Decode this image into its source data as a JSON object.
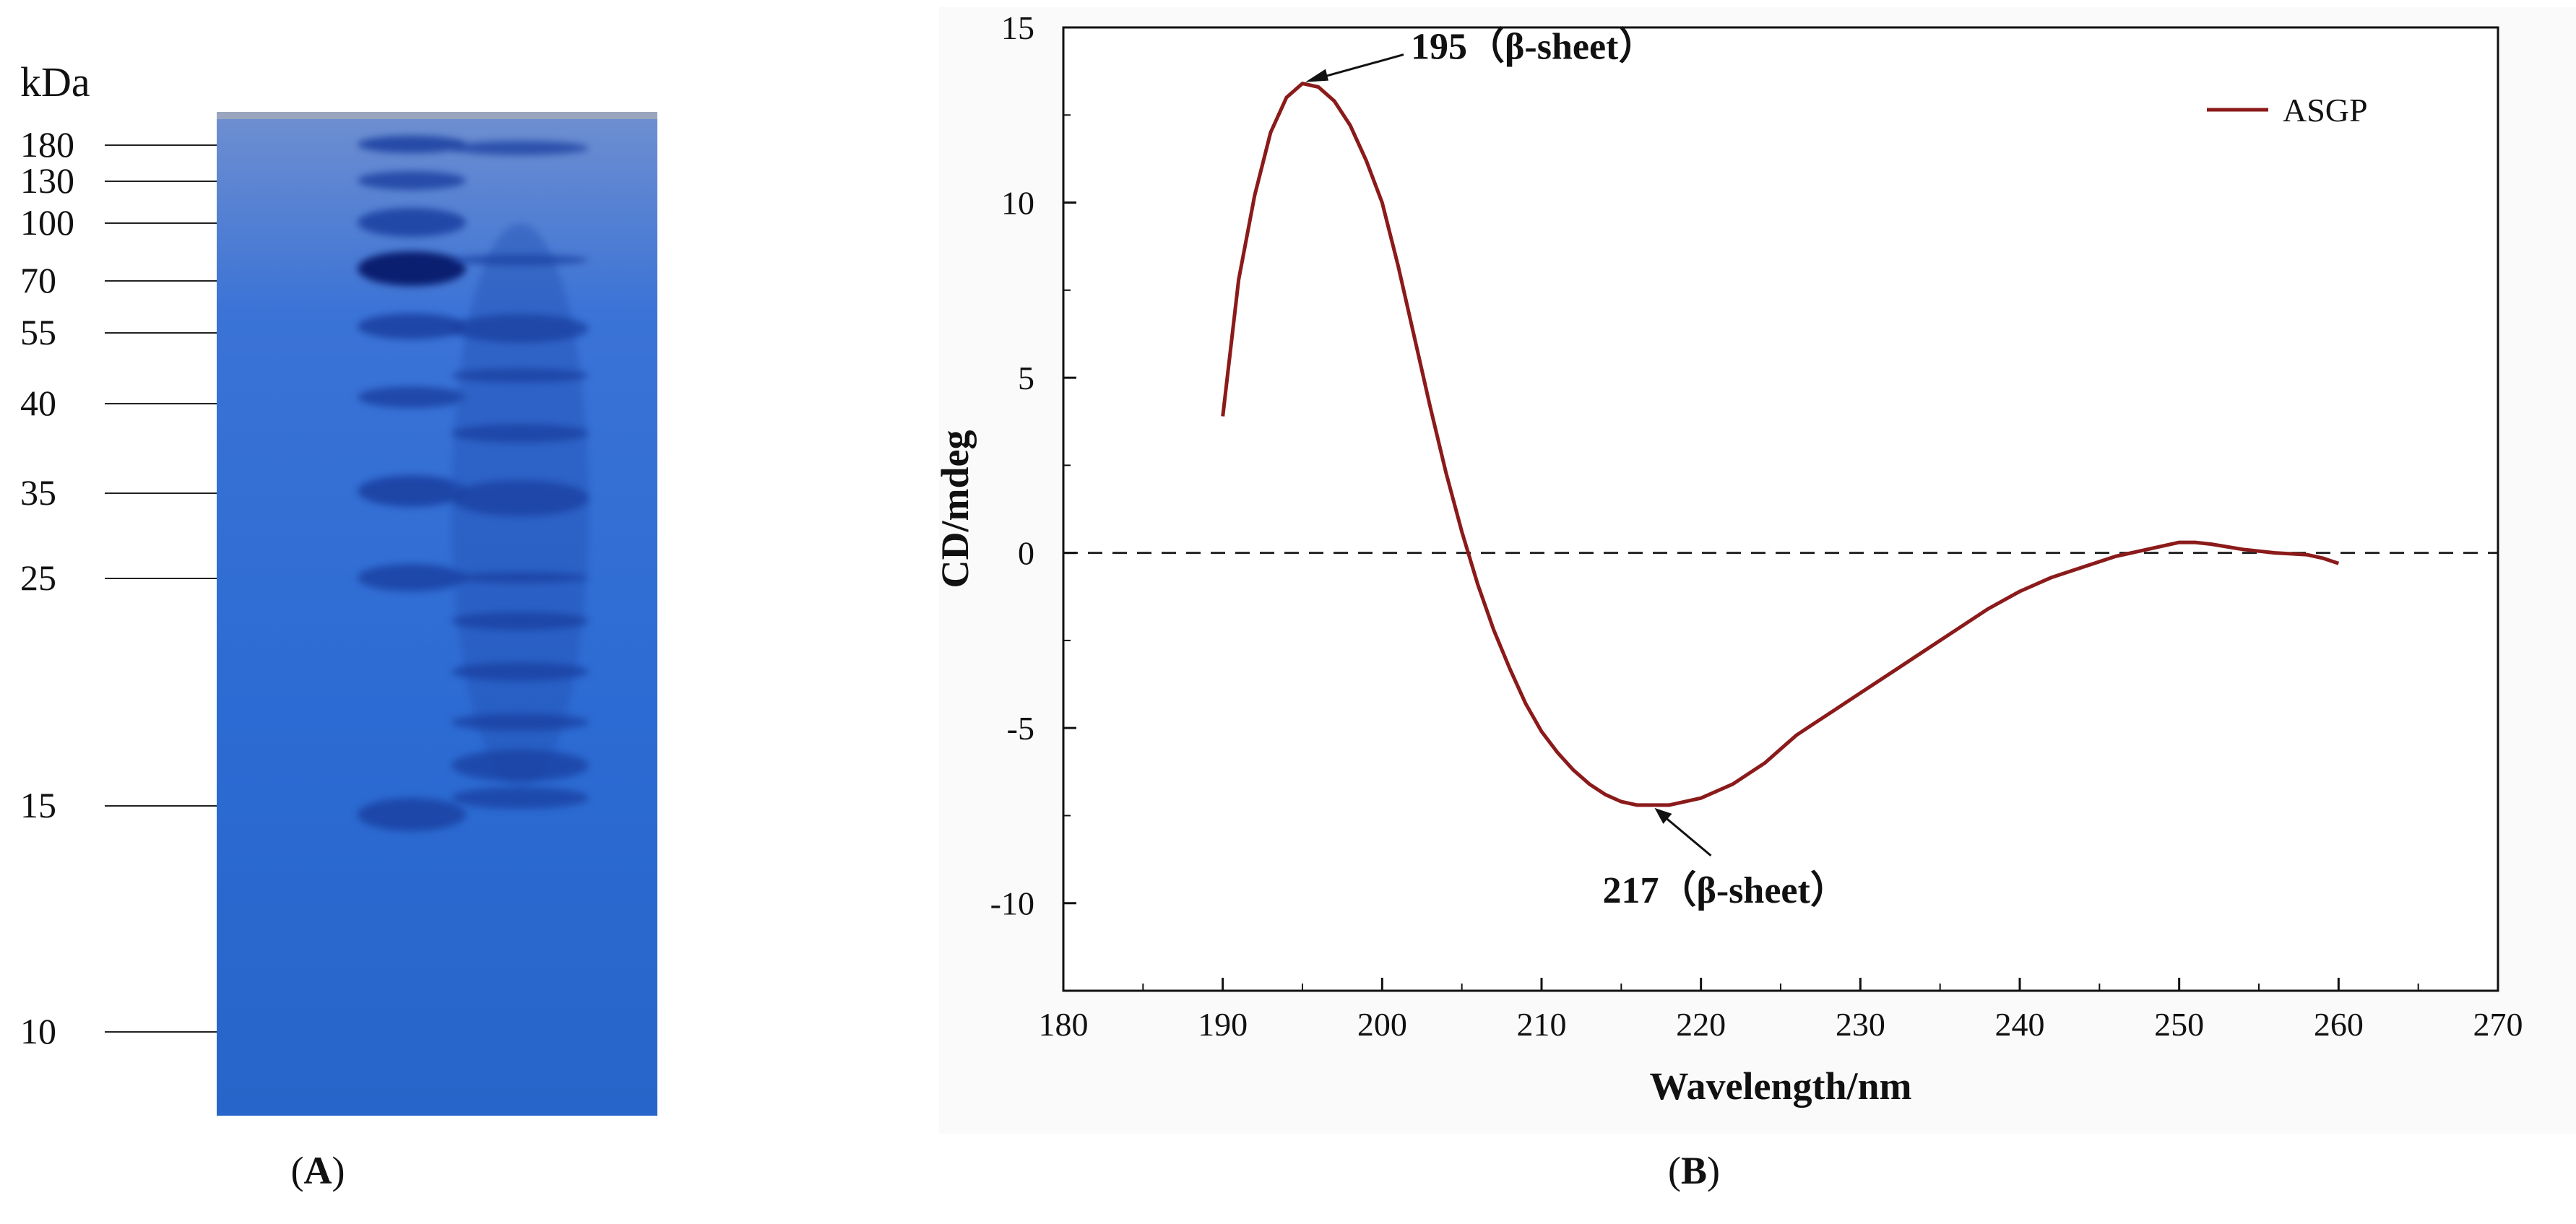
{
  "panel_a": {
    "caption_open": "(",
    "caption_letter": "A",
    "caption_close": ")",
    "unit_label": "kDa",
    "markers": [
      {
        "label": "180",
        "kda": 180
      },
      {
        "label": "130",
        "kda": 130
      },
      {
        "label": "100",
        "kda": 100
      },
      {
        "label": "70",
        "kda": 70
      },
      {
        "label": "55",
        "kda": 55
      },
      {
        "label": "40",
        "kda": 40
      },
      {
        "label": "35",
        "kda": 35
      },
      {
        "label": "25",
        "kda": 25
      },
      {
        "label": "15",
        "kda": 15
      },
      {
        "label": "10",
        "kda": 10
      }
    ],
    "colors": {
      "gel": "#2f6fd4",
      "band": "#1a3fa0",
      "band_dark": "#0b1f70"
    }
  },
  "panel_b": {
    "caption_open": "(",
    "caption_letter": "B",
    "caption_close": ")"
  },
  "chart_data": {
    "type": "line",
    "title": "",
    "xlabel": "Wavelength/nm",
    "ylabel": "CD/mdeg",
    "xlim": [
      180,
      270
    ],
    "ylim": [
      -12.5,
      15
    ],
    "xticks": [
      180,
      190,
      200,
      210,
      220,
      230,
      240,
      250,
      260,
      270
    ],
    "yticks": [
      -10,
      -5,
      0,
      5,
      10,
      15
    ],
    "zero_line": true,
    "legend_position": "top-right",
    "series": [
      {
        "name": "ASGP",
        "color": "#8b1a1a",
        "x": [
          190,
          191,
          192,
          193,
          194,
          195,
          196,
          197,
          198,
          199,
          200,
          201,
          202,
          203,
          204,
          205,
          206,
          207,
          208,
          209,
          210,
          211,
          212,
          213,
          214,
          215,
          216,
          217,
          218,
          219,
          220,
          221,
          222,
          223,
          224,
          225,
          226,
          227,
          228,
          229,
          230,
          232,
          234,
          236,
          238,
          240,
          242,
          244,
          246,
          248,
          250,
          251,
          252,
          254,
          256,
          258,
          259,
          260
        ],
        "y": [
          3.9,
          7.8,
          10.2,
          12.0,
          13.0,
          13.4,
          13.3,
          12.9,
          12.2,
          11.2,
          10.0,
          8.2,
          6.2,
          4.2,
          2.3,
          0.6,
          -0.9,
          -2.2,
          -3.3,
          -4.3,
          -5.1,
          -5.7,
          -6.2,
          -6.6,
          -6.9,
          -7.1,
          -7.2,
          -7.2,
          -7.2,
          -7.1,
          -7.0,
          -6.8,
          -6.6,
          -6.3,
          -6.0,
          -5.6,
          -5.2,
          -4.9,
          -4.6,
          -4.3,
          -4.0,
          -3.4,
          -2.8,
          -2.2,
          -1.6,
          -1.1,
          -0.7,
          -0.4,
          -0.1,
          0.1,
          0.3,
          0.3,
          0.25,
          0.1,
          0.0,
          -0.05,
          -0.15,
          -0.3
        ]
      }
    ],
    "annotations": [
      {
        "text": "195（β-sheet）",
        "x": 195,
        "y": 13.4
      },
      {
        "text": "217（β-sheet）",
        "x": 217,
        "y": -7.2
      }
    ]
  }
}
